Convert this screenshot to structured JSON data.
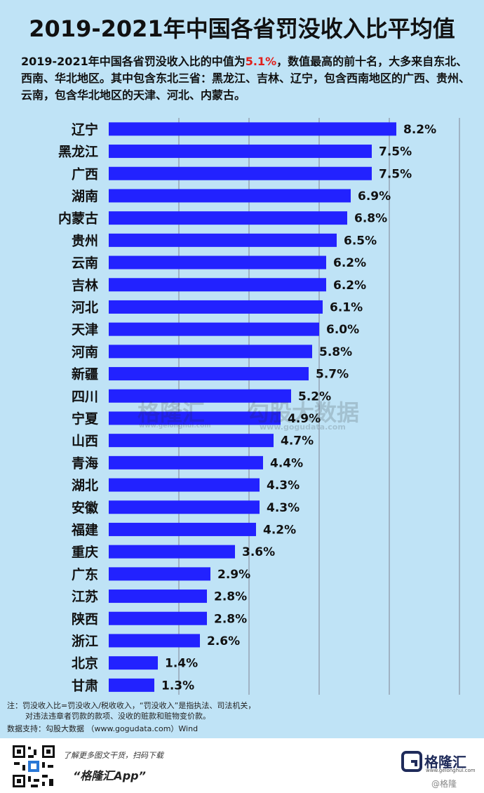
{
  "header": {
    "title": "2019-2021年中国各省罚没收入比平均值",
    "subtitle_before": "2019-2021年中国各省罚没收入比的中值为",
    "subtitle_highlight": "5.1%",
    "subtitle_after": "，数值最高的前十名，大多来自东北、西南、华北地区。其中包含东北三省：黑龙江、吉林、辽宁，包含西南地区的广西、贵州、云南，包含华北地区的天津、河北、内蒙古。"
  },
  "colors": {
    "background": "#bfe3f6",
    "bar": "#2222ff",
    "highlight": "#e0201b",
    "grid": "#9fb3c4"
  },
  "chart_data": {
    "type": "bar",
    "orientation": "horizontal",
    "categories": [
      "辽宁",
      "黑龙江",
      "广西",
      "湖南",
      "内蒙古",
      "贵州",
      "云南",
      "吉林",
      "河北",
      "天津",
      "河南",
      "新疆",
      "四川",
      "宁夏",
      "山西",
      "青海",
      "湖北",
      "安徽",
      "福建",
      "重庆",
      "广东",
      "江苏",
      "陕西",
      "浙江",
      "北京",
      "甘肃"
    ],
    "values": [
      8.2,
      7.5,
      7.5,
      6.9,
      6.8,
      6.5,
      6.2,
      6.2,
      6.1,
      6.0,
      5.8,
      5.7,
      5.2,
      4.9,
      4.7,
      4.4,
      4.3,
      4.3,
      4.2,
      3.6,
      2.9,
      2.8,
      2.8,
      2.6,
      1.4,
      1.3
    ],
    "value_labels": [
      "8.2%",
      "7.5%",
      "7.5%",
      "6.9%",
      "6.8%",
      "6.5%",
      "6.2%",
      "6.2%",
      "6.1%",
      "6.0%",
      "5.8%",
      "5.7%",
      "5.2%",
      "4.9%",
      "4.7%",
      "4.4%",
      "4.3%",
      "4.3%",
      "4.2%",
      "3.6%",
      "2.9%",
      "2.8%",
      "2.8%",
      "2.6%",
      "1.4%",
      "1.3%"
    ],
    "xlim": [
      0,
      10
    ],
    "grid": true,
    "legend": "none"
  },
  "notes": {
    "line1": "注：罚没收入比=罚没收入/税收收入，“罚没收入”是指执法、司法机关，",
    "line2": "对违法违章者罚款的款项、没收的赃款和赃物变价款。",
    "source": "数据支持：勾股大数据 （www.gogudata.com）Wind"
  },
  "watermark": {
    "brand": "格隆汇",
    "brand_url": "www.gelonghui.com",
    "partner": "勾股大数据",
    "partner_url": "www.gogudata.com"
  },
  "footer": {
    "cta": "了解更多图文干货，扫码下载",
    "app_name": "“格隆汇App”",
    "brand_name": "格隆汇",
    "brand_url": "www.gelonghui.com",
    "weibo": "@格隆"
  },
  "icons": {
    "qr": "qr-code-icon",
    "brand_logo": "gelonghui-logo-icon"
  }
}
